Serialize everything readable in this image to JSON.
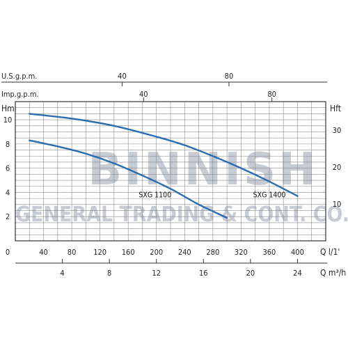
{
  "chart_data": {
    "type": "line",
    "title": "",
    "watermark": {
      "line1": "BINNISH",
      "line2": "GENERAL TRADING & CONT. CO."
    },
    "axes": {
      "top_usgpm": {
        "label": "U.S.g.p.m.",
        "ticks": [
          40,
          80
        ]
      },
      "top_impgpm": {
        "label": "Imp.g.p.m.",
        "ticks": [
          40,
          80
        ]
      },
      "left": {
        "unit": "Hm",
        "ticks": [
          0,
          2,
          4,
          6,
          8,
          10
        ],
        "range": [
          0,
          11.5
        ]
      },
      "right": {
        "unit": "Hft",
        "ticks": [
          10,
          20,
          30
        ]
      },
      "bottom_lpm": {
        "unit": "Q l/1'",
        "ticks": [
          40,
          80,
          120,
          160,
          200,
          240,
          280,
          320,
          360,
          400
        ],
        "range": [
          0,
          440
        ]
      },
      "bottom_m3h": {
        "unit": "Q m³/h",
        "ticks": [
          4,
          8,
          12,
          16,
          20,
          24
        ]
      }
    },
    "grid": true,
    "series": [
      {
        "name": "SXG 1100",
        "color": "#2a6db0",
        "x": [
          20,
          60,
          100,
          140,
          180,
          220,
          260,
          300
        ],
        "y": [
          8.3,
          7.8,
          7.2,
          6.4,
          5.4,
          4.3,
          3.0,
          1.9
        ]
      },
      {
        "name": "SXG 1400",
        "color": "#2a6db0",
        "x": [
          20,
          80,
          140,
          200,
          240,
          280,
          320,
          360,
          400
        ],
        "y": [
          10.5,
          10.1,
          9.5,
          8.6,
          7.9,
          7.0,
          6.0,
          4.9,
          3.7
        ]
      }
    ]
  }
}
